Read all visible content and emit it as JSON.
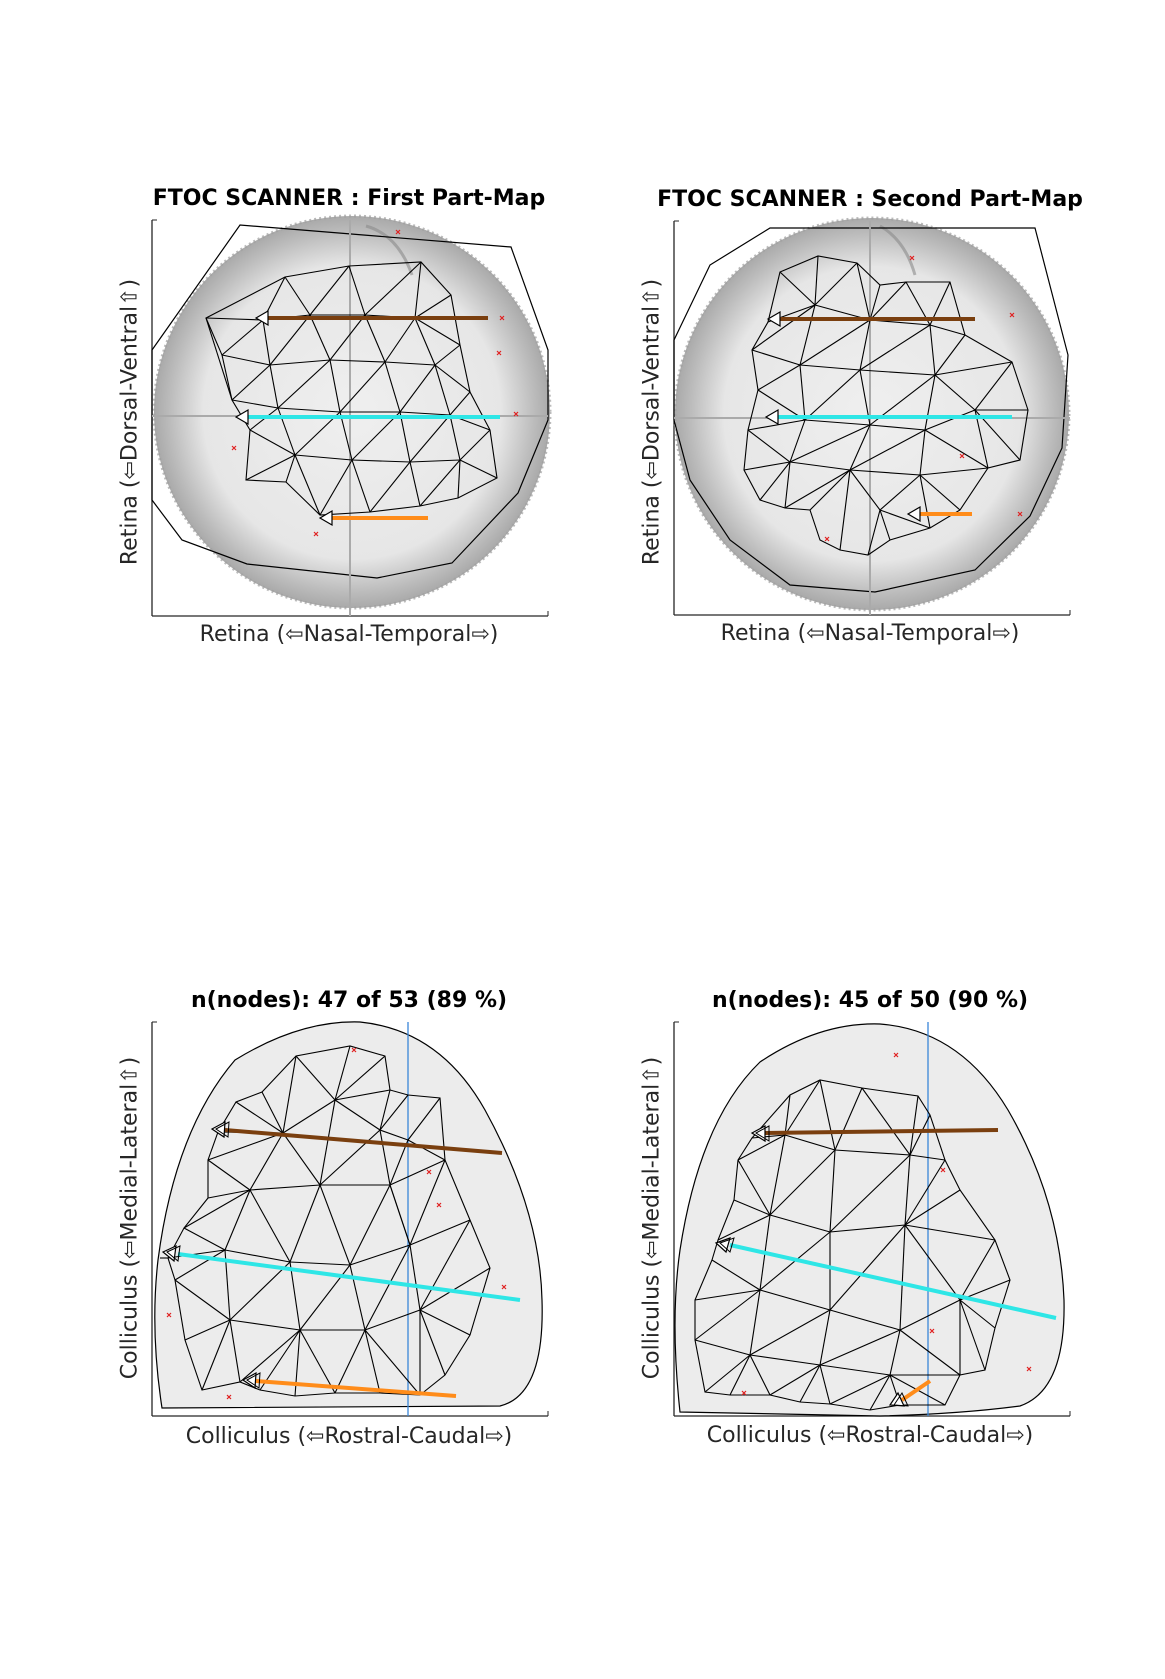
{
  "panels": [
    {
      "id": "retina-first",
      "title": "FTOC SCANNER : First Part-Map",
      "xlabel": "Retina (⇦Nasal-Temporal⇨)",
      "ylabel": "Retina (⇦Dorsal-Ventral⇧)"
    },
    {
      "id": "retina-second",
      "title": "FTOC SCANNER : Second Part-Map",
      "xlabel": "Retina (⇦Nasal-Temporal⇨)",
      "ylabel": "Retina (⇦Dorsal-Ventral⇧)"
    },
    {
      "id": "colliculus-first",
      "title": "n(nodes): 47 of 53 (89 %)",
      "xlabel": "Colliculus (⇦Rostral-Caudal⇨)",
      "ylabel": "Colliculus (⇦Medial-Lateral⇧)"
    },
    {
      "id": "colliculus-second",
      "title": "n(nodes): 45 of 50 (90 %)",
      "xlabel": "Colliculus (⇦Rostral-Caudal⇨)",
      "ylabel": "Colliculus (⇦Medial-Lateral⇧)"
    }
  ],
  "colors": {
    "brown": "#7a3f0f",
    "cyan": "#2ee6e6",
    "orange": "#ff8c1a",
    "mesh": "#000000",
    "marker": "#e02020",
    "guide": "#aaaaaa",
    "guide_blue": "#3a86d8"
  }
}
